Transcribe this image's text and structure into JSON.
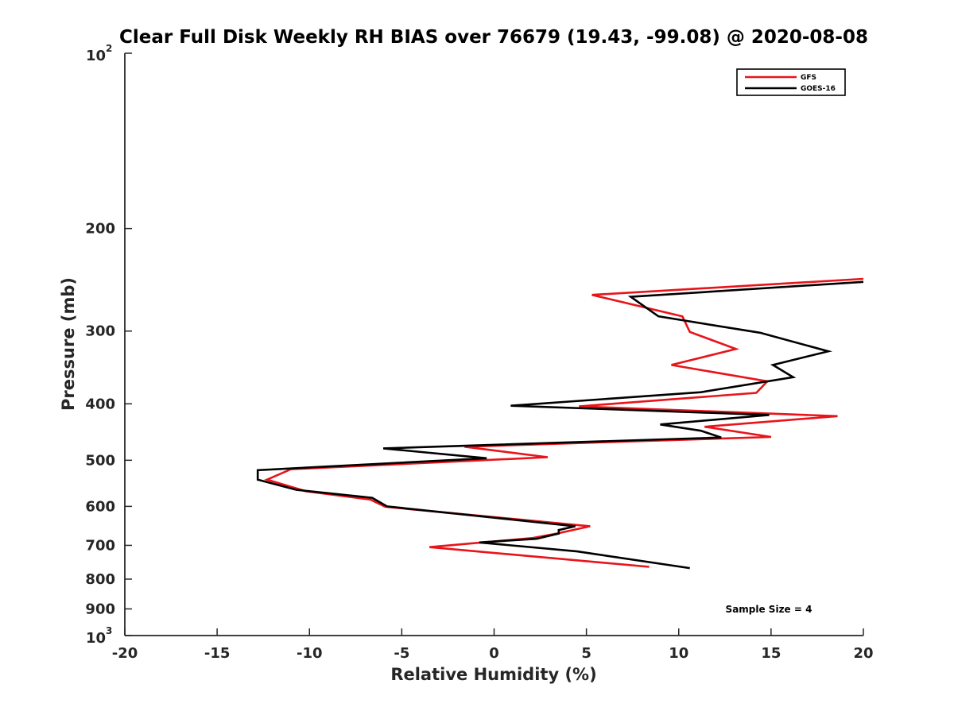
{
  "chart_data": {
    "type": "line",
    "title": "Clear Full Disk Weekly RH BIAS over 76679 (19.43, -99.08) @ 2020-08-08",
    "xlabel": "Relative Humidity (%)",
    "ylabel": "Pressure (mb)",
    "xlim": [
      -20,
      20
    ],
    "ylim": [
      100,
      1000
    ],
    "y_scale": "log",
    "y_reversed": true,
    "grid": false,
    "x_ticks": [
      "-20",
      "-15",
      "-10",
      "-5",
      "0",
      "5",
      "10",
      "15",
      "20"
    ],
    "y_ticks": [
      {
        "value": 100,
        "base": "10",
        "exp": "2"
      },
      {
        "value": 200,
        "label": "200"
      },
      {
        "value": 300,
        "label": "300"
      },
      {
        "value": 400,
        "label": "400"
      },
      {
        "value": 500,
        "label": "500"
      },
      {
        "value": 600,
        "label": "600"
      },
      {
        "value": 700,
        "label": "700"
      },
      {
        "value": 800,
        "label": "800"
      },
      {
        "value": 900,
        "label": "900"
      },
      {
        "value": 1000,
        "base": "10",
        "exp": "3"
      }
    ],
    "legend_position": "top-right",
    "series": [
      {
        "name": "GFS",
        "color": "#e8141a",
        "points": [
          [
            20.0,
            244
          ],
          [
            5.3,
            260
          ],
          [
            10.2,
            283
          ],
          [
            10.6,
            301
          ],
          [
            13.1,
            322
          ],
          [
            9.6,
            343
          ],
          [
            14.8,
            366
          ],
          [
            14.2,
            383
          ],
          [
            4.6,
            404
          ],
          [
            18.6,
            420
          ],
          [
            11.4,
            438
          ],
          [
            15.0,
            456
          ],
          [
            -1.6,
            474
          ],
          [
            2.9,
            494
          ],
          [
            -11.0,
            518
          ],
          [
            -12.3,
            540
          ],
          [
            -10.2,
            565
          ],
          [
            -6.7,
            584
          ],
          [
            -5.9,
            601
          ],
          [
            5.2,
            649
          ],
          [
            3.5,
            667
          ],
          [
            2.1,
            680
          ],
          [
            -3.5,
            705
          ],
          [
            8.4,
            762
          ]
        ]
      },
      {
        "name": "GOES-16",
        "color": "#000000",
        "points": [
          [
            20.0,
            247
          ],
          [
            7.4,
            262
          ],
          [
            8.9,
            283
          ],
          [
            14.4,
            302
          ],
          [
            18.1,
            325
          ],
          [
            15.1,
            343
          ],
          [
            16.2,
            360
          ],
          [
            11.2,
            382
          ],
          [
            0.9,
            403
          ],
          [
            14.9,
            418
          ],
          [
            9.0,
            434
          ],
          [
            11.2,
            445
          ],
          [
            12.3,
            457
          ],
          [
            -6.0,
            477
          ],
          [
            -0.4,
            496
          ],
          [
            -12.8,
            520
          ],
          [
            -12.8,
            540
          ],
          [
            -10.7,
            562
          ],
          [
            -6.6,
            580
          ],
          [
            -5.8,
            600
          ],
          [
            4.4,
            649
          ],
          [
            3.5,
            659
          ],
          [
            3.5,
            668
          ],
          [
            2.3,
            682
          ],
          [
            -0.8,
            692
          ],
          [
            4.5,
            717
          ],
          [
            10.6,
            766
          ]
        ]
      }
    ],
    "annotation": "Sample Size = 4"
  }
}
